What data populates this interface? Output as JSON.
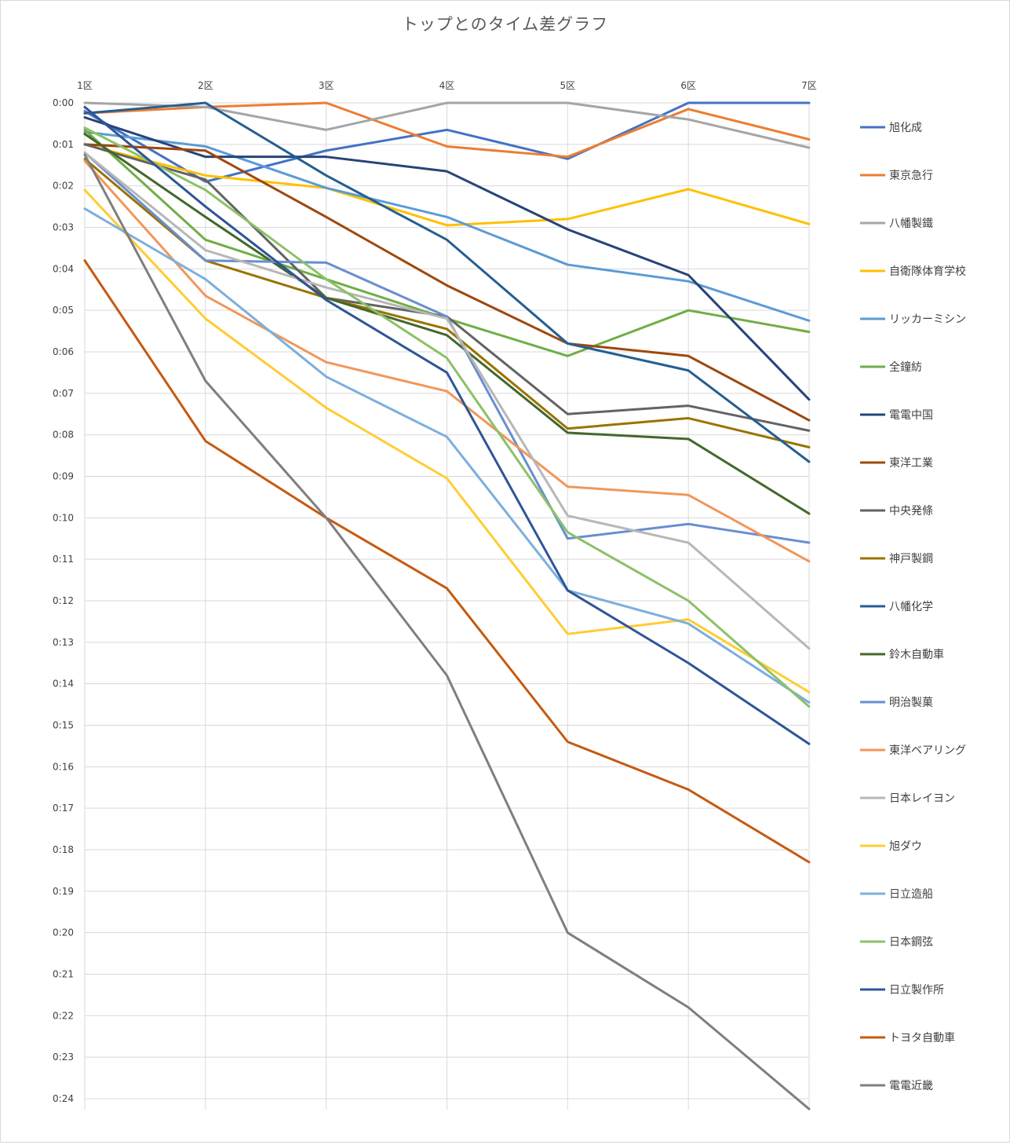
{
  "chart_data": {
    "type": "line",
    "title": "トップとのタイム差グラフ",
    "xlabel": "",
    "ylabel": "",
    "categories": [
      "1区",
      "2区",
      "3区",
      "4区",
      "5区",
      "6区",
      "7区"
    ],
    "y_axis": {
      "reversed": true,
      "min_minutes": 0,
      "max_minutes": 24,
      "step_minutes": 1,
      "labels": [
        "0:00",
        "0:01",
        "0:02",
        "0:03",
        "0:04",
        "0:05",
        "0:06",
        "0:07",
        "0:08",
        "0:09",
        "0:10",
        "0:11",
        "0:12",
        "0:13",
        "0:14",
        "0:15",
        "0:16",
        "0:17",
        "0:18",
        "0:19",
        "0:20",
        "0:21",
        "0:22",
        "0:23",
        "0:24"
      ]
    },
    "grid": true,
    "legend_position": "right",
    "value_unit": "minutes behind leader",
    "series": [
      {
        "name": "旭化成",
        "color": "#4472C4",
        "values": [
          0.2,
          1.9,
          1.15,
          0.65,
          1.35,
          0.0,
          0.0
        ]
      },
      {
        "name": "東京急行",
        "color": "#ED7D31",
        "values": [
          0.25,
          0.1,
          0.0,
          1.05,
          1.3,
          0.15,
          0.88
        ]
      },
      {
        "name": "八幡製鐵",
        "color": "#A5A5A5",
        "values": [
          0.0,
          0.1,
          0.65,
          0.0,
          0.0,
          0.4,
          1.08
        ]
      },
      {
        "name": "自衛隊体育学校",
        "color": "#FFC000",
        "values": [
          1.0,
          1.75,
          2.05,
          2.95,
          2.8,
          2.08,
          2.92
        ]
      },
      {
        "name": "リッカーミシン",
        "color": "#5B9BD5",
        "values": [
          0.7,
          1.05,
          2.05,
          2.75,
          3.9,
          4.3,
          5.25
        ]
      },
      {
        "name": "全鐘紡",
        "color": "#70AD47",
        "values": [
          0.65,
          3.3,
          4.25,
          5.2,
          6.1,
          5.0,
          5.52
        ]
      },
      {
        "name": "電電中国",
        "color": "#264478",
        "values": [
          0.35,
          1.3,
          1.3,
          1.65,
          3.05,
          4.15,
          7.15
        ]
      },
      {
        "name": "東洋工業",
        "color": "#9E480E",
        "values": [
          1.0,
          1.15,
          2.75,
          4.4,
          5.8,
          6.1,
          7.65
        ]
      },
      {
        "name": "中央発條",
        "color": "#636363",
        "values": [
          1.0,
          1.85,
          4.7,
          5.15,
          7.5,
          7.3,
          7.9
        ]
      },
      {
        "name": "神戸製鋼",
        "color": "#997300",
        "values": [
          1.35,
          3.8,
          4.7,
          5.45,
          7.85,
          7.6,
          8.3
        ]
      },
      {
        "name": "八幡化学",
        "color": "#255E91",
        "values": [
          0.25,
          0.0,
          1.75,
          3.3,
          5.8,
          6.45,
          8.65
        ]
      },
      {
        "name": "鈴木自動車",
        "color": "#43682B",
        "values": [
          0.75,
          2.75,
          4.7,
          5.6,
          7.95,
          8.1,
          9.9
        ]
      },
      {
        "name": "明治製菓",
        "color": "#698ED0",
        "values": [
          1.2,
          3.8,
          3.85,
          5.15,
          10.5,
          10.15,
          10.6
        ]
      },
      {
        "name": "東洋ベアリング",
        "color": "#F1975A",
        "values": [
          1.4,
          4.65,
          6.25,
          6.95,
          9.25,
          9.45,
          11.05
        ]
      },
      {
        "name": "日本レイヨン",
        "color": "#B7B7B7",
        "values": [
          1.2,
          3.55,
          4.45,
          5.2,
          9.95,
          10.6,
          13.15
        ]
      },
      {
        "name": "旭ダウ",
        "color": "#FFCD33",
        "values": [
          2.1,
          5.2,
          7.35,
          9.05,
          12.8,
          12.45,
          14.2
        ]
      },
      {
        "name": "日立造船",
        "color": "#7CAFDD",
        "values": [
          2.55,
          4.25,
          6.6,
          8.05,
          11.75,
          12.55,
          14.45
        ]
      },
      {
        "name": "日本鋼弦",
        "color": "#8CC168",
        "values": [
          0.6,
          2.1,
          4.25,
          6.15,
          10.35,
          12.0,
          14.55
        ]
      },
      {
        "name": "日立製作所",
        "color": "#2F5597",
        "values": [
          0.1,
          2.5,
          4.75,
          6.5,
          11.75,
          13.5,
          15.45
        ]
      },
      {
        "name": "トヨタ自動車",
        "color": "#C55A11",
        "values": [
          3.8,
          8.15,
          10.0,
          11.7,
          15.4,
          16.55,
          18.3
        ]
      },
      {
        "name": "電電近畿",
        "color": "#7F7F7F",
        "values": [
          1.25,
          6.7,
          10.0,
          13.8,
          20.0,
          21.8,
          24.25
        ]
      }
    ]
  }
}
